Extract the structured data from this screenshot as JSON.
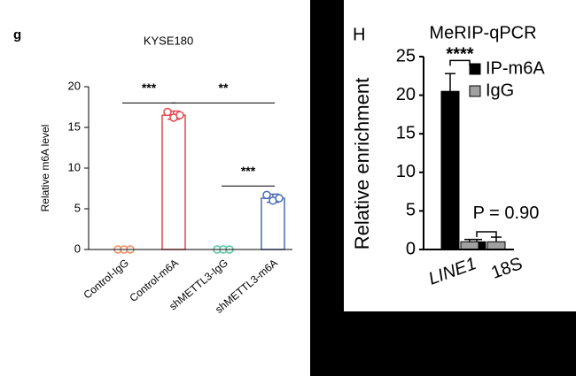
{
  "chart_data": [
    {
      "type": "bar",
      "panel_label": "g",
      "title": "KYSE180",
      "ylabel": "Relative m6A level",
      "categories": [
        "Control-IgG",
        "Control-m6A",
        "shMETTL3-IgG",
        "shMETTL3-m6A"
      ],
      "values": [
        0,
        16.5,
        0,
        6.3
      ],
      "errors": [
        0,
        0.5,
        0,
        0.5
      ],
      "colors": [
        "#f08a5d",
        "#e0494f",
        "#55c7a0",
        "#4a6cb3"
      ],
      "points": [
        [
          0,
          0,
          0
        ],
        [
          16.9,
          16.2,
          16.5
        ],
        [
          0,
          0,
          0
        ],
        [
          6.7,
          6.0,
          6.3
        ]
      ],
      "ylim": [
        0,
        20
      ],
      "yticks": [
        0,
        5,
        10,
        15,
        20
      ],
      "annotations": [
        {
          "text": "***",
          "between": [
            "Control-IgG",
            "Control-m6A"
          ],
          "y": 18
        },
        {
          "text": "**",
          "between": [
            "Control-m6A",
            "shMETTL3-m6A"
          ],
          "y": 18
        },
        {
          "text": "***",
          "between": [
            "shMETTL3-IgG",
            "shMETTL3-m6A"
          ],
          "y": 7.8
        }
      ]
    },
    {
      "type": "grouped_bar",
      "panel_label": "H",
      "title": "MeRIP-qPCR",
      "ylabel": "Relative enrichment",
      "categories": [
        "LINE1",
        "18S"
      ],
      "series": [
        {
          "name": "IP-m6A",
          "color": "#000000",
          "values": [
            20.5,
            1.0
          ],
          "errors": [
            2.3,
            0.3
          ]
        },
        {
          "name": "IgG",
          "color": "#a0a0a0",
          "values": [
            1.0,
            1.0
          ],
          "errors": [
            0.3,
            0.6
          ]
        }
      ],
      "ylim": [
        0,
        25
      ],
      "yticks": [
        0,
        5,
        10,
        15,
        20,
        25
      ],
      "annotations": [
        {
          "text": "****",
          "category": "LINE1",
          "y": 24.5
        },
        {
          "text": "P = 0.90",
          "category": "18S",
          "y": 2.3
        }
      ]
    }
  ]
}
